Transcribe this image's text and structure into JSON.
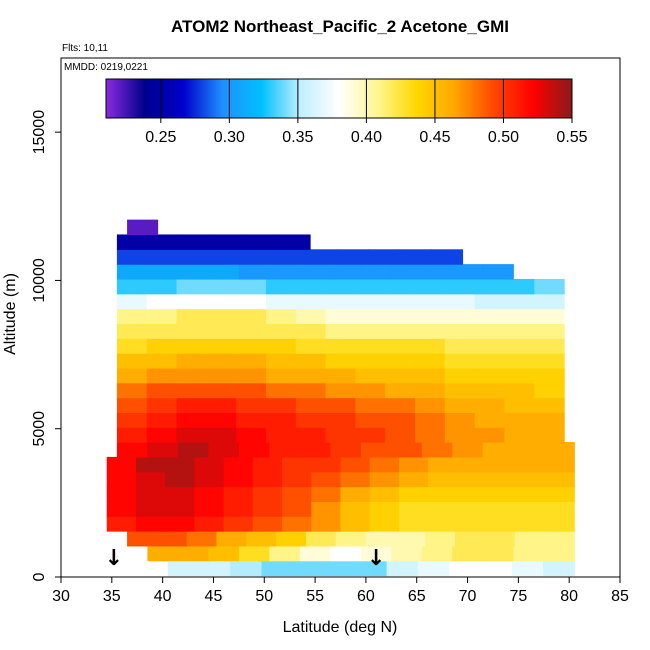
{
  "chart_data": {
    "type": "heatmap",
    "title": "ATOM2 Northeast_Pacific_2 Acetone_GMI",
    "annotations": {
      "flights": "Flts: 10,11",
      "dates": "MMDD: 0219,0221"
    },
    "xlabel": "Latitude (deg N)",
    "ylabel": "Altitude (m)",
    "xlim": [
      30,
      85
    ],
    "ylim": [
      0,
      17500
    ],
    "xticks": [
      30,
      35,
      40,
      45,
      50,
      55,
      60,
      65,
      70,
      75,
      80,
      85
    ],
    "yticks": [
      0,
      5000,
      10000,
      15000
    ],
    "colorbar": {
      "min": 0.21,
      "max": 0.55,
      "ticks": [
        0.25,
        0.3,
        0.35,
        0.4,
        0.45,
        0.5,
        0.55
      ],
      "tick_labels": [
        "0.25",
        "0.30",
        "0.35",
        "0.40",
        "0.45",
        "0.50",
        "0.55"
      ],
      "colors": [
        "#8a2be2",
        "#00008b",
        "#0000cd",
        "#1e90ff",
        "#00bfff",
        "#bfefff",
        "#ffffff",
        "#fff68f",
        "#ffd700",
        "#ffa500",
        "#ff4500",
        "#ff0000",
        "#8b1a1a"
      ]
    },
    "altitude_levels": [
      {
        "alt": 300,
        "lat_start": 40.5,
        "lat_end": 80.5,
        "values": [
          0.36,
          0.36,
          0.35,
          0.34,
          0.34,
          0.34,
          0.34,
          0.36,
          0.37,
          0.38,
          0.38,
          0.37,
          0.36
        ]
      },
      {
        "alt": 800,
        "lat_start": 38.5,
        "lat_end": 80.5,
        "values": [
          0.46,
          0.46,
          0.45,
          0.43,
          0.41,
          0.39,
          0.38,
          0.39,
          0.4,
          0.41,
          0.42,
          0.42,
          0.41,
          0.41
        ]
      },
      {
        "alt": 1300,
        "lat_start": 36.5,
        "lat_end": 80.5,
        "values": [
          0.49,
          0.49,
          0.48,
          0.46,
          0.45,
          0.44,
          0.42,
          0.41,
          0.4,
          0.4,
          0.41,
          0.42,
          0.42,
          0.41,
          0.41
        ]
      },
      {
        "alt": 1800,
        "lat_start": 34.5,
        "lat_end": 80.5,
        "values": [
          0.51,
          0.52,
          0.52,
          0.51,
          0.5,
          0.49,
          0.48,
          0.47,
          0.45,
          0.44,
          0.43,
          0.43,
          0.43,
          0.43,
          0.43,
          0.43
        ]
      },
      {
        "alt": 2300,
        "lat_start": 34.5,
        "lat_end": 80.5,
        "values": [
          0.52,
          0.53,
          0.53,
          0.52,
          0.51,
          0.5,
          0.49,
          0.47,
          0.45,
          0.44,
          0.43,
          0.43,
          0.43,
          0.43,
          0.43,
          0.43
        ]
      },
      {
        "alt": 2800,
        "lat_start": 34.5,
        "lat_end": 80.5,
        "values": [
          0.52,
          0.53,
          0.53,
          0.52,
          0.51,
          0.5,
          0.49,
          0.48,
          0.46,
          0.45,
          0.44,
          0.44,
          0.44,
          0.44,
          0.44,
          0.44
        ]
      },
      {
        "alt": 3300,
        "lat_start": 34.5,
        "lat_end": 80.5,
        "values": [
          0.52,
          0.53,
          0.54,
          0.53,
          0.52,
          0.51,
          0.5,
          0.49,
          0.48,
          0.47,
          0.46,
          0.45,
          0.45,
          0.45,
          0.45,
          0.45
        ]
      },
      {
        "alt": 3800,
        "lat_start": 34.5,
        "lat_end": 80.5,
        "values": [
          0.52,
          0.54,
          0.54,
          0.53,
          0.52,
          0.51,
          0.5,
          0.5,
          0.49,
          0.48,
          0.47,
          0.46,
          0.46,
          0.46,
          0.46,
          0.46
        ]
      },
      {
        "alt": 4300,
        "lat_start": 35.5,
        "lat_end": 80.5,
        "values": [
          0.52,
          0.53,
          0.54,
          0.53,
          0.52,
          0.51,
          0.51,
          0.5,
          0.49,
          0.49,
          0.48,
          0.47,
          0.46,
          0.46,
          0.46
        ]
      },
      {
        "alt": 4800,
        "lat_start": 35.5,
        "lat_end": 79.5,
        "values": [
          0.51,
          0.52,
          0.53,
          0.53,
          0.52,
          0.51,
          0.51,
          0.5,
          0.5,
          0.49,
          0.48,
          0.47,
          0.47,
          0.46,
          0.46
        ]
      },
      {
        "alt": 5300,
        "lat_start": 35.5,
        "lat_end": 79.5,
        "values": [
          0.5,
          0.51,
          0.52,
          0.52,
          0.51,
          0.51,
          0.5,
          0.5,
          0.49,
          0.49,
          0.48,
          0.47,
          0.46,
          0.46,
          0.46
        ]
      },
      {
        "alt": 5800,
        "lat_start": 35.5,
        "lat_end": 79.5,
        "values": [
          0.49,
          0.5,
          0.51,
          0.51,
          0.5,
          0.5,
          0.49,
          0.49,
          0.48,
          0.48,
          0.47,
          0.46,
          0.46,
          0.45,
          0.45
        ]
      },
      {
        "alt": 6300,
        "lat_start": 35.5,
        "lat_end": 79.5,
        "values": [
          0.48,
          0.49,
          0.49,
          0.49,
          0.49,
          0.48,
          0.48,
          0.47,
          0.47,
          0.46,
          0.46,
          0.45,
          0.45,
          0.45,
          0.44
        ]
      },
      {
        "alt": 6800,
        "lat_start": 35.5,
        "lat_end": 79.5,
        "values": [
          0.46,
          0.47,
          0.47,
          0.47,
          0.47,
          0.46,
          0.46,
          0.46,
          0.45,
          0.45,
          0.45,
          0.44,
          0.44,
          0.44,
          0.44
        ]
      },
      {
        "alt": 7300,
        "lat_start": 35.5,
        "lat_end": 79.5,
        "values": [
          0.45,
          0.45,
          0.46,
          0.46,
          0.46,
          0.45,
          0.45,
          0.44,
          0.44,
          0.44,
          0.44,
          0.43,
          0.43,
          0.43,
          0.43
        ]
      },
      {
        "alt": 7800,
        "lat_start": 35.5,
        "lat_end": 79.5,
        "values": [
          0.43,
          0.44,
          0.44,
          0.44,
          0.44,
          0.44,
          0.43,
          0.43,
          0.43,
          0.43,
          0.43,
          0.42,
          0.42,
          0.42,
          0.42
        ]
      },
      {
        "alt": 8300,
        "lat_start": 35.5,
        "lat_end": 79.5,
        "values": [
          0.42,
          0.42,
          0.42,
          0.42,
          0.42,
          0.42,
          0.42,
          0.41,
          0.41,
          0.41,
          0.41,
          0.41,
          0.41,
          0.41,
          0.41
        ]
      },
      {
        "alt": 8800,
        "lat_start": 35.5,
        "lat_end": 79.5,
        "values": [
          0.41,
          0.41,
          0.42,
          0.42,
          0.42,
          0.41,
          0.4,
          0.39,
          0.39,
          0.39,
          0.39,
          0.39,
          0.39,
          0.39,
          0.39
        ]
      },
      {
        "alt": 9300,
        "lat_start": 35.5,
        "lat_end": 79.5,
        "values": [
          0.37,
          0.38,
          0.38,
          0.38,
          0.38,
          0.37,
          0.37,
          0.37,
          0.37,
          0.37,
          0.37,
          0.37,
          0.36,
          0.36,
          0.36
        ]
      },
      {
        "alt": 9800,
        "lat_start": 35.5,
        "lat_end": 79.5,
        "values": [
          0.33,
          0.33,
          0.34,
          0.34,
          0.34,
          0.33,
          0.33,
          0.33,
          0.33,
          0.33,
          0.33,
          0.33,
          0.33,
          0.33,
          0.34
        ]
      },
      {
        "alt": 10300,
        "lat_start": 35.5,
        "lat_end": 74.5,
        "values": [
          0.31,
          0.31,
          0.31,
          0.31,
          0.3,
          0.3,
          0.3,
          0.3,
          0.3,
          0.3,
          0.3,
          0.3,
          0.3
        ]
      },
      {
        "alt": 10800,
        "lat_start": 35.5,
        "lat_end": 69.5,
        "values": [
          0.28,
          0.28,
          0.28,
          0.28,
          0.28,
          0.28,
          0.28,
          0.28,
          0.28,
          0.28,
          0.28
        ]
      },
      {
        "alt": 11300,
        "lat_start": 35.5,
        "lat_end": 54.5,
        "values": [
          0.25,
          0.25,
          0.25,
          0.25,
          0.25,
          0.25
        ]
      },
      {
        "alt": 11800,
        "lat_start": 36.5,
        "lat_end": 39.5,
        "values": [
          0.22
        ]
      }
    ],
    "flight_track_markers": [
      {
        "lat": 35.2,
        "alt": 400,
        "label": "↓"
      },
      {
        "lat": 61.0,
        "alt": 400,
        "label": "↓"
      }
    ]
  }
}
